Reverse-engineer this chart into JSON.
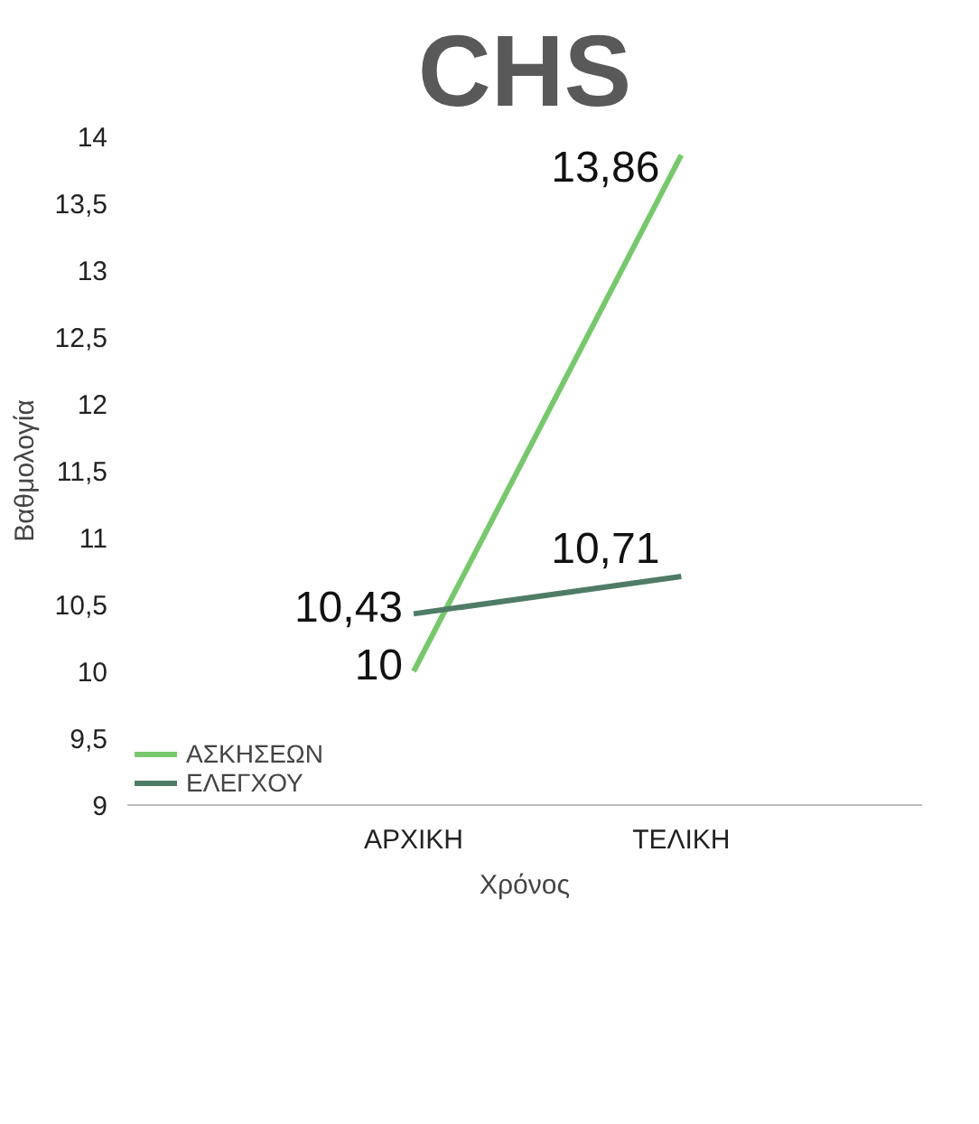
{
  "chart_data": {
    "type": "line",
    "title": "CHS",
    "xlabel": "Χρόνος",
    "ylabel": "Βαθμολογία",
    "categories": [
      "ΑΡΧΙΚΗ",
      "ΤΕΛΙΚΗ"
    ],
    "series": [
      {
        "name": "ΑΣΚΗΣΕΩΝ",
        "color": "#77c86c",
        "values": [
          10,
          13.86
        ],
        "value_labels": [
          "10",
          "13,86"
        ]
      },
      {
        "name": "ΕΛΕΓΧΟΥ",
        "color": "#4f7c66",
        "values": [
          10.43,
          10.71
        ],
        "value_labels": [
          "10,43",
          "10,71"
        ]
      }
    ],
    "ylim": [
      9,
      14
    ],
    "yticks": [
      9,
      {
        "value": 9.5,
        "label": "9,5"
      },
      10,
      {
        "value": 10.5,
        "label": "10,5"
      },
      11,
      {
        "value": 11.5,
        "label": "11,5"
      },
      12,
      {
        "value": 12.5,
        "label": "12,5"
      },
      13,
      {
        "value": 13.5,
        "label": "13,5"
      },
      14
    ],
    "grid": false,
    "legend": "bottom left",
    "marker": "none",
    "line_style": "solid"
  }
}
